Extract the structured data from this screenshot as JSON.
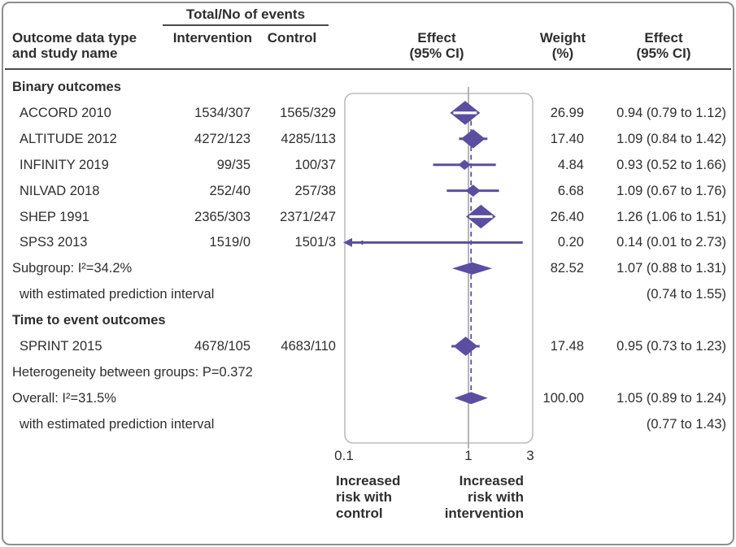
{
  "colors": {
    "accent": "#5b4ea1",
    "null_line": "#a3a3a3",
    "plot_border": "#bcbcbc",
    "outer_border": "#8f8f8f",
    "separator": "#4a4a4a",
    "text": "#2e2e2e"
  },
  "header": {
    "events_group": "Total/No of events",
    "outcome_col_line1": "Outcome data type",
    "outcome_col_line2": "and study name",
    "intervention_col": "Intervention",
    "control_col": "Control",
    "effect_plot_col_line1": "Effect",
    "effect_plot_col_line2": "(95% CI)",
    "weight_col_line1": "Weight",
    "weight_col_line2": "(%)",
    "effect_text_col_line1": "Effect",
    "effect_text_col_line2": "(95% CI)"
  },
  "axis": {
    "ticks": [
      "0.1",
      "1",
      "3"
    ],
    "left_label": [
      "Increased",
      "risk with",
      "control"
    ],
    "right_label": [
      "Increased",
      "risk with",
      "intervention"
    ]
  },
  "chart_data": {
    "type": "forest",
    "x_axis": {
      "scale": "log",
      "min": 0.1,
      "max": 3.1,
      "ticks": [
        0.1,
        1,
        3
      ],
      "null_value": 1,
      "overall_estimate_line": 1.05
    },
    "rows": [
      {
        "kind": "group",
        "label": "Binary outcomes"
      },
      {
        "kind": "study",
        "label": "ACCORD 2010",
        "intervention": "1534/307",
        "control": "1565/329",
        "est": 0.94,
        "lo": 0.79,
        "hi": 1.12,
        "weight": 26.99,
        "weight_text": "26.99",
        "effect_text": "0.94 (0.79 to 1.12)"
      },
      {
        "kind": "study",
        "label": "ALTITUDE 2012",
        "intervention": "4272/123",
        "control": "4285/113",
        "est": 1.09,
        "lo": 0.84,
        "hi": 1.42,
        "weight": 17.4,
        "weight_text": "17.40",
        "effect_text": "1.09 (0.84 to 1.42)"
      },
      {
        "kind": "study",
        "label": "INFINITY 2019",
        "intervention": "99/35",
        "control": "100/37",
        "est": 0.93,
        "lo": 0.52,
        "hi": 1.66,
        "weight": 4.84,
        "weight_text": "4.84",
        "effect_text": "0.93 (0.52 to 1.66)"
      },
      {
        "kind": "study",
        "label": "NILVAD 2018",
        "intervention": "252/40",
        "control": "257/38",
        "est": 1.09,
        "lo": 0.67,
        "hi": 1.76,
        "weight": 6.68,
        "weight_text": "6.68",
        "effect_text": "1.09 (0.67 to 1.76)"
      },
      {
        "kind": "study",
        "label": "SHEP 1991",
        "intervention": "2365/303",
        "control": "2371/247",
        "est": 1.26,
        "lo": 1.06,
        "hi": 1.51,
        "weight": 26.4,
        "weight_text": "26.40",
        "effect_text": "1.26 (1.06 to 1.51)"
      },
      {
        "kind": "study",
        "label": "SPS3 2013",
        "intervention": "1519/0",
        "control": "1501/3",
        "est": 0.14,
        "lo": 0.01,
        "hi": 2.73,
        "weight": 0.2,
        "weight_text": "0.20",
        "effect_text": "0.14 (0.01 to 2.73)"
      },
      {
        "kind": "summary",
        "label": "Subgroup: I²=34.2%",
        "est": 1.07,
        "lo": 0.88,
        "hi": 1.31,
        "pi_lo": 0.74,
        "pi_hi": 1.55,
        "weight_text": "82.52",
        "effect_text": "1.07 (0.88 to 1.31)"
      },
      {
        "kind": "note",
        "indent": true,
        "label": "with estimated prediction interval",
        "effect_text": "(0.74 to 1.55)"
      },
      {
        "kind": "group",
        "label": "Time to event outcomes"
      },
      {
        "kind": "study",
        "label": "SPRINT 2015",
        "intervention": "4678/105",
        "control": "4683/110",
        "est": 0.95,
        "lo": 0.73,
        "hi": 1.23,
        "weight": 17.48,
        "weight_text": "17.48",
        "effect_text": "0.95 (0.73 to 1.23)"
      },
      {
        "kind": "note",
        "indent": false,
        "label": "Heterogeneity between groups: P=0.372"
      },
      {
        "kind": "summary",
        "label": "Overall: I²=31.5%",
        "est": 1.05,
        "lo": 0.89,
        "hi": 1.24,
        "pi_lo": 0.77,
        "pi_hi": 1.43,
        "weight_text": "100.00",
        "effect_text": "1.05 (0.89 to 1.24)"
      },
      {
        "kind": "note",
        "indent": true,
        "label": "with estimated prediction interval",
        "effect_text": "(0.77 to 1.43)"
      }
    ]
  }
}
